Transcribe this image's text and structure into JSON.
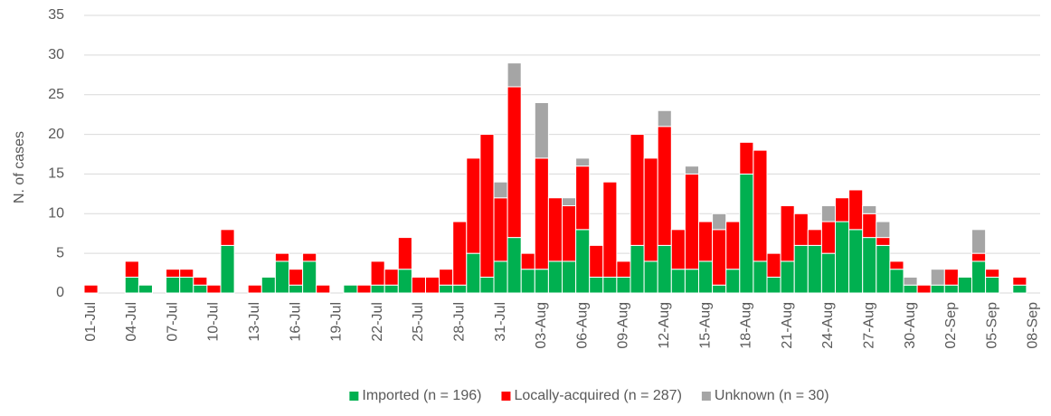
{
  "chart_data": {
    "type": "stacked_bar",
    "y_label": "N. of cases",
    "categories": [
      "01-Jul",
      null,
      null,
      "04-Jul",
      null,
      null,
      "07-Jul",
      null,
      null,
      "10-Jul",
      null,
      null,
      "13-Jul",
      null,
      null,
      "16-Jul",
      null,
      null,
      "19-Jul",
      null,
      null,
      "22-Jul",
      null,
      null,
      "25-Jul",
      null,
      null,
      "28-Jul",
      null,
      null,
      "31-Jul",
      null,
      null,
      "03-Aug",
      null,
      null,
      "06-Aug",
      null,
      null,
      "09-Aug",
      null,
      null,
      "12-Aug",
      null,
      null,
      "15-Aug",
      null,
      null,
      "18-Aug",
      null,
      null,
      "21-Aug",
      null,
      null,
      "24-Aug",
      null,
      null,
      "27-Aug",
      null,
      null,
      "30-Aug",
      null,
      null,
      "02-Sep",
      null,
      null,
      "05-Sep",
      null,
      null,
      "08-Sep"
    ],
    "series": [
      {
        "name": "Imported (n = 196)",
        "color": "#00b050",
        "values": [
          0,
          0,
          0,
          2,
          1,
          0,
          2,
          2,
          1,
          0,
          6,
          0,
          0,
          2,
          4,
          1,
          4,
          0,
          0,
          1,
          0,
          1,
          1,
          3,
          0,
          0,
          1,
          1,
          5,
          2,
          4,
          7,
          3,
          3,
          4,
          4,
          8,
          2,
          2,
          2,
          6,
          4,
          6,
          3,
          3,
          4,
          1,
          3,
          15,
          4,
          2,
          4,
          6,
          6,
          5,
          9,
          8,
          7,
          6,
          3,
          1,
          0,
          1,
          1,
          2,
          4,
          2,
          0,
          1,
          0
        ]
      },
      {
        "name": "Locally-acquired (n = 287)",
        "color": "#ff0000",
        "values": [
          1,
          0,
          0,
          2,
          0,
          0,
          1,
          1,
          1,
          1,
          2,
          0,
          1,
          0,
          1,
          2,
          1,
          1,
          0,
          0,
          1,
          3,
          2,
          4,
          2,
          2,
          2,
          8,
          12,
          18,
          8,
          19,
          2,
          14,
          8,
          7,
          8,
          4,
          12,
          2,
          14,
          13,
          15,
          5,
          12,
          5,
          7,
          6,
          4,
          14,
          3,
          7,
          4,
          2,
          4,
          3,
          5,
          3,
          1,
          1,
          0,
          1,
          0,
          2,
          0,
          1,
          1,
          0,
          1,
          0
        ]
      },
      {
        "name": "Unknown (n = 30)",
        "color": "#a5a5a5",
        "values": [
          0,
          0,
          0,
          0,
          0,
          0,
          0,
          0,
          0,
          0,
          0,
          0,
          0,
          0,
          0,
          0,
          0,
          0,
          0,
          0,
          0,
          0,
          0,
          0,
          0,
          0,
          0,
          0,
          0,
          0,
          2,
          3,
          0,
          7,
          0,
          1,
          1,
          0,
          0,
          0,
          0,
          0,
          2,
          0,
          1,
          0,
          2,
          0,
          0,
          0,
          0,
          0,
          0,
          0,
          2,
          0,
          0,
          1,
          2,
          0,
          1,
          0,
          2,
          0,
          0,
          3,
          0,
          0,
          0,
          0
        ]
      }
    ],
    "ylim": [
      0,
      35
    ],
    "yticks": [
      0,
      5,
      10,
      15,
      20,
      25,
      30,
      35
    ],
    "grid": true,
    "legend": "bottom"
  }
}
